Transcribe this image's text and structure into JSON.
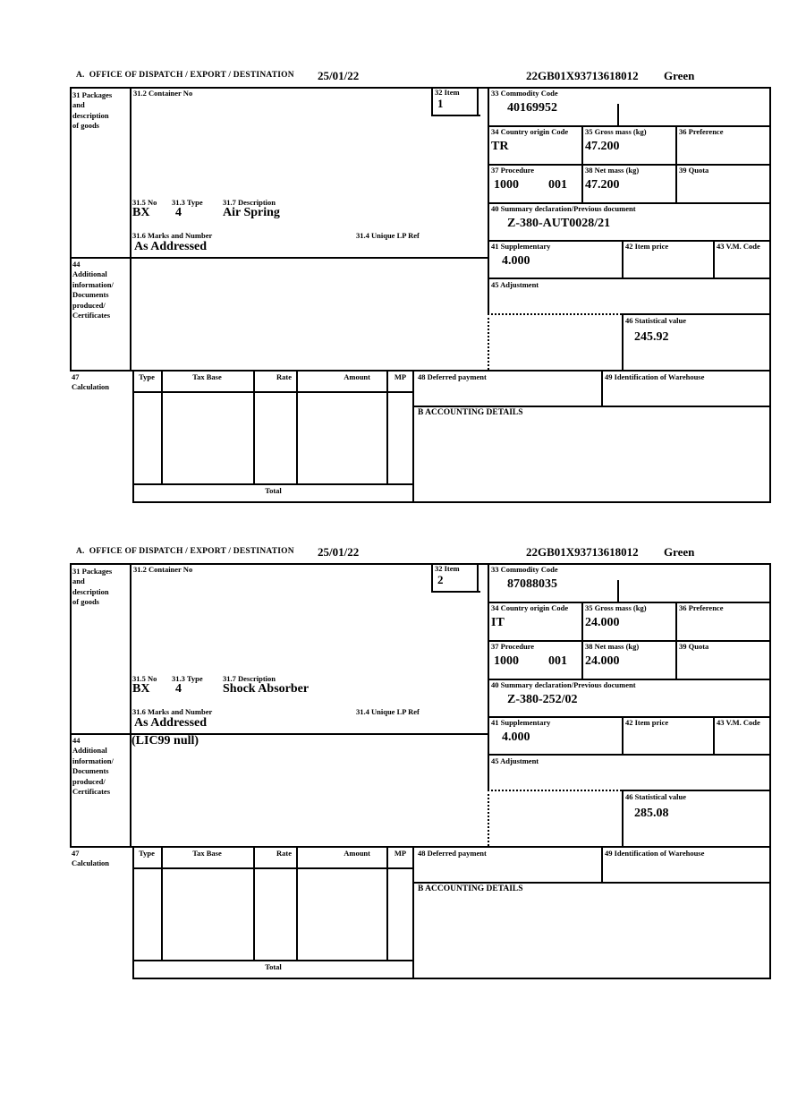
{
  "header": {
    "office_label": "A.  OFFICE OF DISPATCH / EXPORT / DESTINATION",
    "date": "25/01/22",
    "mrn": "22GB01X93713618012",
    "routing": "Green"
  },
  "labels": {
    "box31": "31 Packages\nand\ndescription\nof goods",
    "box31_2": "31.2 Container No",
    "box31_5": "31.5 No",
    "box31_3": "31.3 Type",
    "box31_7": "31.7 Description",
    "box31_6": "31.6 Marks and Number",
    "box31_4": "31.4 Unique LP Ref",
    "box32": "32 Item",
    "box33": "33 Commodity Code",
    "box34": "34 Country origin Code",
    "box35": "35 Gross mass (kg)",
    "box36": "36 Preference",
    "box37": "37 Procedure",
    "box38": "38 Net mass (kg)",
    "box39": "39 Quota",
    "box40": "40 Summary declaration/Previous document",
    "box41": "41 Supplementary",
    "box42": "42 Item price",
    "box43": "43 V.M. Code",
    "box44": "44\nAdditional\ninformation/\nDocuments\nproduced/\nCertificates",
    "box45": "45 Adjustment",
    "box46": "46 Statistical value",
    "box47": "47\nCalculation",
    "box48": "48 Deferred payment",
    "box49": "49 Identification of Warehouse",
    "accounting": "B ACCOUNTING DETAILS",
    "calc": {
      "type": "Type",
      "tax_base": "Tax Base",
      "rate": "Rate",
      "amount": "Amount",
      "mp": "MP"
    },
    "total": "Total"
  },
  "items": [
    {
      "item_no": "1",
      "container_no": "",
      "commodity_code": "40169952",
      "country_origin_code": "TR",
      "gross_mass_kg": "47.200",
      "preference": "",
      "procedure": "1000",
      "procedure_code2": "001",
      "net_mass_kg": "47.200",
      "quota": "",
      "previous_document": "Z-380-AUT0028/21",
      "supplementary_units": "4.000",
      "item_price": "",
      "vm_code": "",
      "packages_no": "BX",
      "packages_type": "4",
      "goods_description": "Air Spring",
      "marks_and_number": "As Addressed",
      "unique_lp_ref": "",
      "additional_information": "",
      "adjustment": "",
      "statistical_value": "245.92"
    },
    {
      "item_no": "2",
      "container_no": "",
      "commodity_code": "87088035",
      "country_origin_code": "IT",
      "gross_mass_kg": "24.000",
      "preference": "",
      "procedure": "1000",
      "procedure_code2": "001",
      "net_mass_kg": "24.000",
      "quota": "",
      "previous_document": "Z-380-252/02",
      "supplementary_units": "4.000",
      "item_price": "",
      "vm_code": "",
      "packages_no": "BX",
      "packages_type": "4",
      "goods_description": "Shock Absorber",
      "marks_and_number": "As Addressed",
      "unique_lp_ref": "",
      "additional_information": "(LIC99 null)",
      "adjustment": "",
      "statistical_value": "285.08"
    }
  ]
}
